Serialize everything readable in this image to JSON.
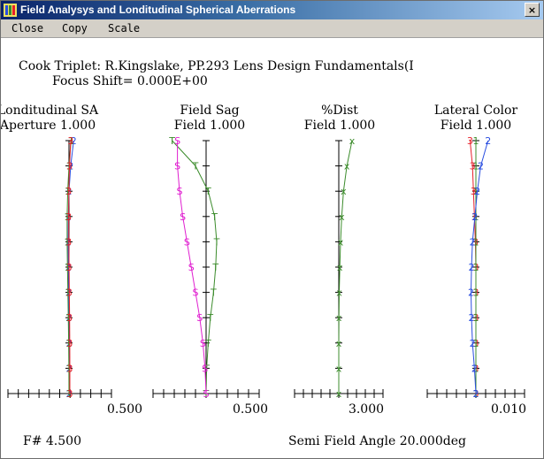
{
  "window": {
    "title": "Field Analysys and Londitudinal Spherical Aberrations",
    "close_glyph": "×",
    "app_icon": "lens-app-icon"
  },
  "menu": {
    "items": [
      "Close",
      "Copy",
      "Scale"
    ]
  },
  "header": {
    "line1": "Cook Triplet: R.Kingslake, PP.293 Lens Design Fundamentals(I",
    "line2": "Focus Shift= 0.000E+00"
  },
  "footer": {
    "fnumber": "F# 4.500",
    "semi_field": "Semi Field Angle 20.000deg"
  },
  "colors": {
    "red": "#e8202a",
    "green": "#3c8c2c",
    "blue": "#2a4ee0",
    "magenta": "#e020d0"
  },
  "chart_data": [
    {
      "type": "line",
      "title": "Londitudinal SA",
      "subtitle": "Aperture 1.000",
      "x_max_label": "0.500",
      "xlim": [
        -0.15,
        0.5
      ],
      "ylim": [
        0,
        1
      ],
      "series": [
        {
          "marker": "2",
          "color": "blue",
          "y": [
            0,
            0.1,
            0.2,
            0.3,
            0.4,
            0.5,
            0.6,
            0.7,
            0.8,
            0.9,
            1.0
          ],
          "x": [
            0.0,
            0.0,
            0.0,
            -0.002,
            -0.005,
            -0.008,
            -0.01,
            -0.008,
            0.0,
            0.02,
            0.055
          ]
        },
        {
          "marker": "1",
          "color": "green",
          "y": [
            0,
            0.1,
            0.2,
            0.3,
            0.4,
            0.5,
            0.6,
            0.7,
            0.8,
            0.9,
            1.0
          ],
          "x": [
            0.0,
            -0.001,
            -0.004,
            -0.008,
            -0.013,
            -0.018,
            -0.022,
            -0.022,
            -0.015,
            0.0,
            0.025
          ]
        },
        {
          "marker": "3",
          "color": "red",
          "y": [
            0,
            0.1,
            0.2,
            0.3,
            0.4,
            0.5,
            0.6,
            0.7,
            0.8,
            0.9,
            1.0
          ],
          "x": [
            0.01,
            0.01,
            0.009,
            0.007,
            0.004,
            0.001,
            -0.002,
            -0.004,
            -0.002,
            0.006,
            0.02
          ]
        }
      ]
    },
    {
      "type": "line",
      "title": "Field Sag",
      "subtitle": "Field 1.000",
      "x_max_label": "0.500",
      "xlim": [
        -0.5,
        0.5
      ],
      "ylim": [
        0,
        1
      ],
      "series": [
        {
          "marker": "T",
          "color": "green",
          "y": [
            0,
            0.1,
            0.2,
            0.3,
            0.4,
            0.5,
            0.6,
            0.7,
            0.8,
            0.9,
            1.0
          ],
          "x": [
            0.0,
            0.005,
            0.02,
            0.04,
            0.07,
            0.09,
            0.1,
            0.08,
            0.02,
            -0.1,
            -0.32
          ]
        },
        {
          "marker": "S",
          "color": "magenta",
          "y": [
            0,
            0.1,
            0.2,
            0.3,
            0.4,
            0.5,
            0.6,
            0.7,
            0.8,
            0.9,
            1.0
          ],
          "x": [
            0.0,
            -0.01,
            -0.03,
            -0.06,
            -0.1,
            -0.14,
            -0.18,
            -0.22,
            -0.25,
            -0.27,
            -0.27
          ]
        }
      ]
    },
    {
      "type": "line",
      "title": "%Dist",
      "subtitle": "Field 1.000",
      "x_max_label": "3.000",
      "xlim": [
        -3.0,
        3.0
      ],
      "ylim": [
        0,
        1
      ],
      "series": [
        {
          "marker": "x",
          "color": "green",
          "y": [
            0,
            0.1,
            0.2,
            0.3,
            0.4,
            0.5,
            0.6,
            0.7,
            0.8,
            0.9,
            1.0
          ],
          "x": [
            0.0,
            0.0,
            0.0,
            0.01,
            0.03,
            0.07,
            0.12,
            0.2,
            0.32,
            0.55,
            0.9
          ]
        }
      ]
    },
    {
      "type": "line",
      "title": "Lateral Color",
      "subtitle": "Field 1.000",
      "x_max_label": "0.010",
      "xlim": [
        -0.01,
        0.01
      ],
      "ylim": [
        0,
        1
      ],
      "series": [
        {
          "marker": "3",
          "color": "red",
          "y": [
            0,
            0.1,
            0.2,
            0.3,
            0.4,
            0.5,
            0.6,
            0.7,
            0.8,
            0.9,
            1.0
          ],
          "x": [
            0.0,
            0.0,
            0.0,
            0.0,
            0.0,
            0.0,
            -0.0001,
            -0.0003,
            -0.0005,
            -0.0007,
            -0.0012
          ]
        },
        {
          "marker": "1",
          "color": "green",
          "y": [
            0,
            0.1,
            0.2,
            0.3,
            0.4,
            0.5,
            0.6,
            0.7,
            0.8,
            0.9,
            1.0
          ],
          "x": [
            0.0,
            0.0,
            0.0,
            0.0,
            0.0,
            0.0,
            0.0,
            0.0,
            0.0,
            0.0,
            0.0
          ]
        },
        {
          "marker": "2",
          "color": "blue",
          "y": [
            0,
            0.1,
            0.2,
            0.3,
            0.4,
            0.5,
            0.6,
            0.7,
            0.8,
            0.9,
            1.0
          ],
          "x": [
            0.0,
            -0.0003,
            -0.0007,
            -0.0009,
            -0.001,
            -0.0009,
            -0.0007,
            -0.0002,
            0.0003,
            0.001,
            0.0025
          ]
        }
      ]
    }
  ]
}
